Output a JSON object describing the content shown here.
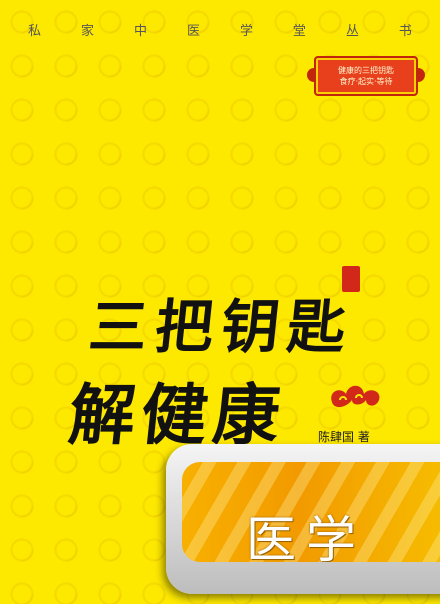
{
  "series": {
    "chars": [
      "私",
      "家",
      "中",
      "医",
      "学",
      "堂",
      "丛",
      "书"
    ]
  },
  "seal": {
    "line1": "健康的三把钥匙",
    "line2": "食疗·起实·等待"
  },
  "title": {
    "line1": "三把钥匙",
    "line2": "解健康"
  },
  "author": "陈肆国 著",
  "category": "医学",
  "colors": {
    "background": "#fde800",
    "seal_red": "#e8401c",
    "banner_orange": "#f29a00"
  }
}
